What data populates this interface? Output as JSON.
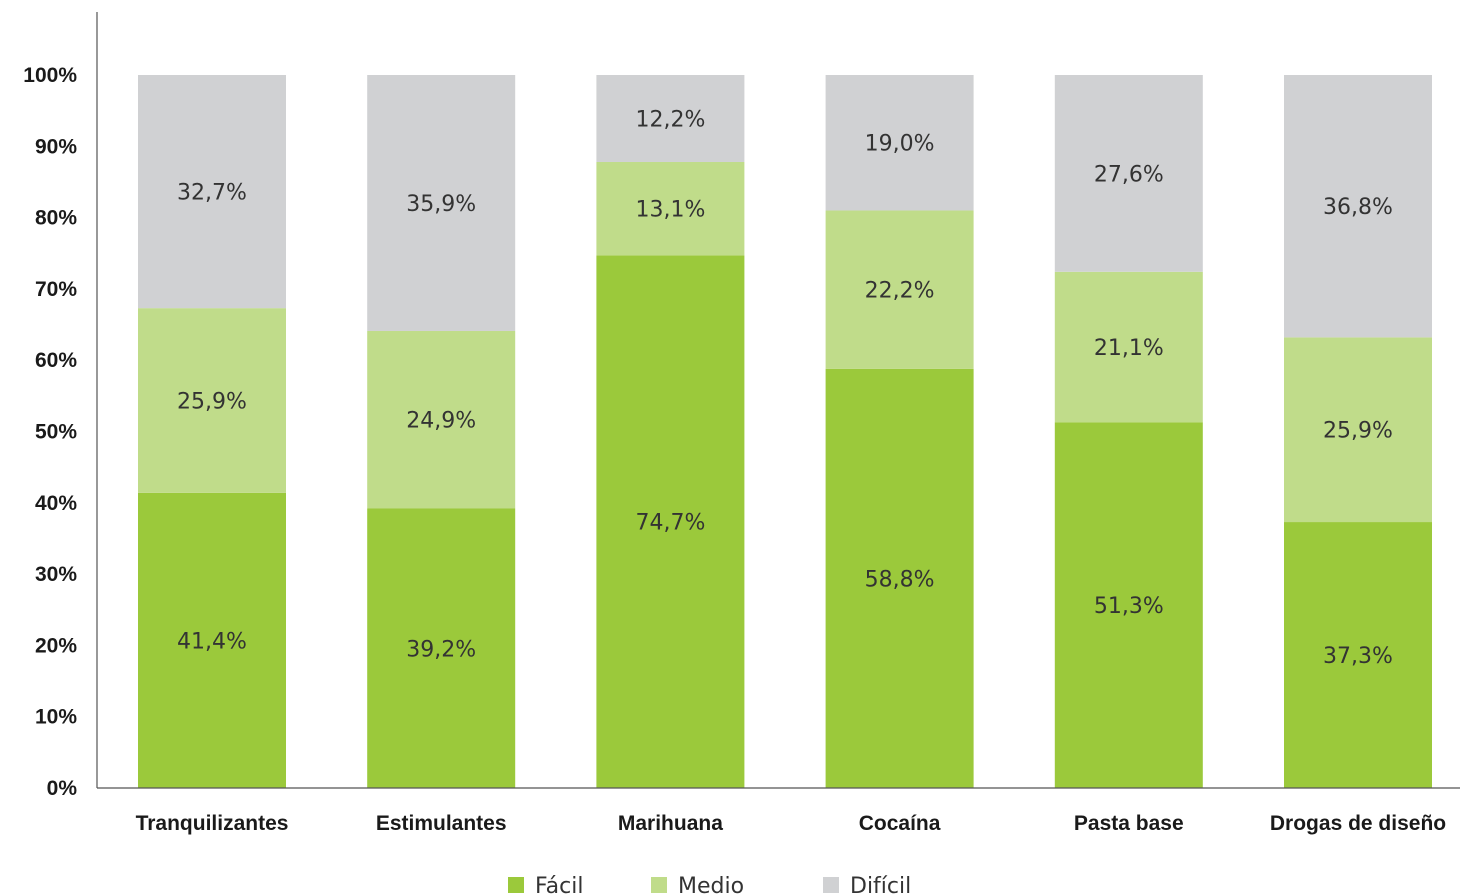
{
  "chart_data": {
    "type": "bar",
    "stacked": true,
    "categories": [
      "Tranquilizantes",
      "Estimulantes",
      "Marihuana",
      "Cocaína",
      "Pasta base",
      "Drogas de diseño"
    ],
    "series": [
      {
        "name": "Fácil",
        "color": "#9bc93b",
        "values": [
          41.4,
          39.2,
          74.7,
          58.8,
          51.3,
          37.3
        ],
        "labels": [
          "41,4%",
          "39,2%",
          "74,7%",
          "58,8%",
          "51,3%",
          "37,3%"
        ]
      },
      {
        "name": "Medio",
        "color": "#c0dc8a",
        "values": [
          25.9,
          24.9,
          13.1,
          22.2,
          21.1,
          25.9
        ],
        "labels": [
          "25,9%",
          "24,9%",
          "13,1%",
          "22,2%",
          "21,1%",
          "25,9%"
        ]
      },
      {
        "name": "Difícil",
        "color": "#d0d1d3",
        "values": [
          32.7,
          35.9,
          12.2,
          19.0,
          27.6,
          36.8
        ],
        "labels": [
          "32,7%",
          "35,9%",
          "12,2%",
          "19,0%",
          "27,6%",
          "36,8%"
        ]
      }
    ],
    "yticks": [
      "0%",
      "10%",
      "20%",
      "30%",
      "40%",
      "50%",
      "60%",
      "70%",
      "80%",
      "90%",
      "100%"
    ],
    "ylim": [
      0,
      100
    ],
    "title": "",
    "xlabel": "",
    "ylabel": "",
    "grid": false,
    "legend_position": "bottom-center"
  }
}
